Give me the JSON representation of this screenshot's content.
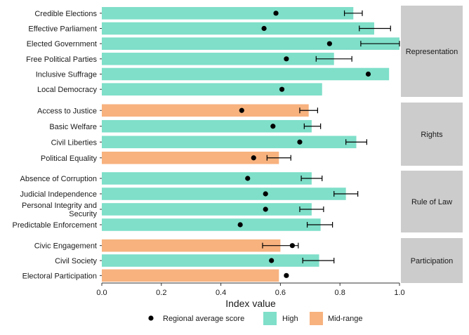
{
  "chart_data": {
    "type": "bar",
    "orientation": "horizontal",
    "xlabel": "Index value",
    "xlim": [
      0,
      1.0
    ],
    "xticks": [
      "0.0",
      "0.2",
      "0.4",
      "0.6",
      "0.8",
      "1.0"
    ],
    "grid": false,
    "legend": {
      "position": "bottom",
      "items": [
        {
          "kind": "point",
          "label": "Regional average score"
        },
        {
          "kind": "fill",
          "label": "High",
          "color": "#7fdfc9"
        },
        {
          "kind": "fill",
          "label": "Mid-range",
          "color": "#f7b27e"
        }
      ]
    },
    "colors": {
      "High": "#7fdfc9",
      "Mid-range": "#f7b27e",
      "facet_strip": "#cccccc",
      "point": "#000000"
    },
    "facets": [
      {
        "label": "Representation",
        "rows": [
          {
            "label": [
              "Credible Elections"
            ],
            "value": 0.845,
            "category": "High",
            "avg": 0.585,
            "err": [
              0.815,
              0.875
            ]
          },
          {
            "label": [
              "Effective Parliament"
            ],
            "value": 0.915,
            "category": "High",
            "avg": 0.545,
            "err": [
              0.865,
              0.97
            ]
          },
          {
            "label": [
              "Elected Government"
            ],
            "value": 1.0,
            "category": "High",
            "avg": 0.765,
            "err": [
              0.87,
              1.0
            ]
          },
          {
            "label": [
              "Free Political Parties"
            ],
            "value": 0.78,
            "category": "High",
            "avg": 0.62,
            "err": [
              0.72,
              0.84
            ]
          },
          {
            "label": [
              "Inclusive Suffrage"
            ],
            "value": 0.965,
            "category": "High",
            "avg": 0.895,
            "err": null
          },
          {
            "label": [
              "Local Democracy"
            ],
            "value": 0.74,
            "category": "High",
            "avg": 0.605,
            "err": null
          }
        ]
      },
      {
        "label": "Rights",
        "rows": [
          {
            "label": [
              "Access to Justice"
            ],
            "value": 0.695,
            "category": "Mid-range",
            "avg": 0.47,
            "err": [
              0.665,
              0.725
            ]
          },
          {
            "label": [
              "Basic Welfare"
            ],
            "value": 0.705,
            "category": "High",
            "avg": 0.575,
            "err": [
              0.68,
              0.735
            ]
          },
          {
            "label": [
              "Civil Liberties"
            ],
            "value": 0.855,
            "category": "High",
            "avg": 0.665,
            "err": [
              0.82,
              0.89
            ]
          },
          {
            "label": [
              "Political Equality"
            ],
            "value": 0.595,
            "category": "Mid-range",
            "avg": 0.51,
            "err": [
              0.555,
              0.635
            ]
          }
        ]
      },
      {
        "label": "Rule of Law",
        "rows": [
          {
            "label": [
              "Absence of Corruption"
            ],
            "value": 0.705,
            "category": "High",
            "avg": 0.49,
            "err": [
              0.67,
              0.74
            ]
          },
          {
            "label": [
              "Judicial Independence"
            ],
            "value": 0.82,
            "category": "High",
            "avg": 0.55,
            "err": [
              0.78,
              0.86
            ]
          },
          {
            "label": [
              "Personal Integrity and",
              "Security"
            ],
            "value": 0.705,
            "category": "High",
            "avg": 0.55,
            "err": [
              0.665,
              0.745
            ]
          },
          {
            "label": [
              "Predictable Enforcement"
            ],
            "value": 0.735,
            "category": "High",
            "avg": 0.465,
            "err": [
              0.69,
              0.775
            ]
          }
        ]
      },
      {
        "label": "Participation",
        "rows": [
          {
            "label": [
              "Civic Engagement"
            ],
            "value": 0.6,
            "category": "Mid-range",
            "avg": 0.64,
            "err": [
              0.54,
              0.66
            ]
          },
          {
            "label": [
              "Civil Society"
            ],
            "value": 0.73,
            "category": "High",
            "avg": 0.57,
            "err": [
              0.675,
              0.78
            ]
          },
          {
            "label": [
              "Electoral Participation"
            ],
            "value": 0.595,
            "category": "Mid-range",
            "avg": 0.62,
            "err": null
          }
        ]
      }
    ]
  }
}
